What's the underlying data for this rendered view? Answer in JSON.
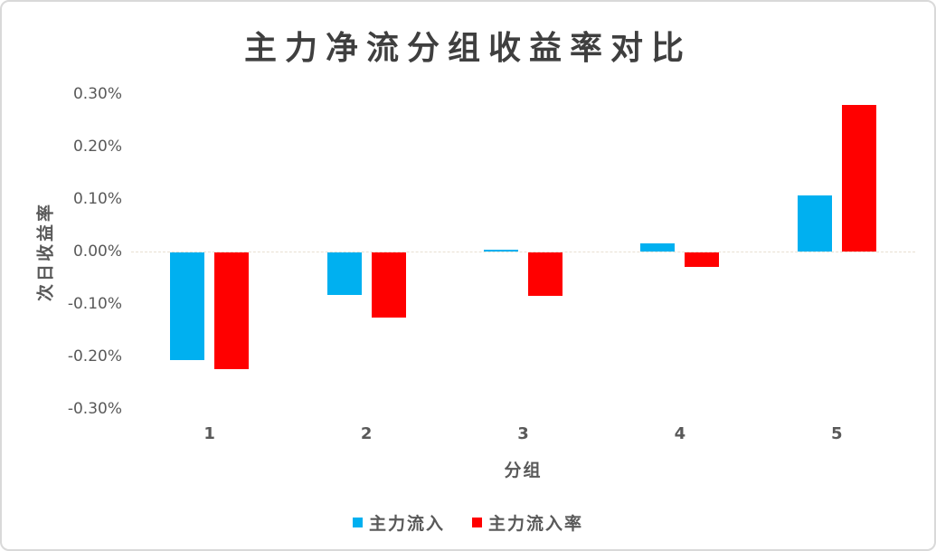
{
  "title": "主力净流分组收益率对比",
  "y_axis": {
    "title": "次日收益率",
    "ticks": [
      "0.30%",
      "0.20%",
      "0.10%",
      "0.00%",
      "-0.10%",
      "-0.20%",
      "-0.30%"
    ]
  },
  "x_axis": {
    "title": "分组",
    "categories": [
      "1",
      "2",
      "3",
      "4",
      "5"
    ]
  },
  "legend": [
    {
      "label": "主力流入",
      "color": "#00B0F0"
    },
    {
      "label": "主力流入率",
      "color": "#FF0000"
    }
  ],
  "colors": {
    "series_blue": "#00B0F0",
    "series_red": "#FF0000",
    "text_gray": "#595959",
    "title_gray": "#3f3f3f",
    "axis_line": "#e8e0d2",
    "frame_border": "#d9d9d9"
  },
  "chart_data": {
    "type": "bar",
    "title": "主力净流分组收益率对比",
    "xlabel": "分组",
    "ylabel": "次日收益率",
    "categories": [
      "1",
      "2",
      "3",
      "4",
      "5"
    ],
    "series": [
      {
        "name": "主力流入",
        "color": "#00B0F0",
        "values_pct": [
          -0.205,
          -0.081,
          0.004,
          0.015,
          0.107
        ]
      },
      {
        "name": "主力流入率",
        "color": "#FF0000",
        "values_pct": [
          -0.222,
          -0.124,
          -0.082,
          -0.028,
          0.28
        ]
      }
    ],
    "ylim_pct": [
      -0.3,
      0.3
    ],
    "ytick_step_pct": 0.1,
    "grid": false,
    "legend_position": "bottom"
  }
}
